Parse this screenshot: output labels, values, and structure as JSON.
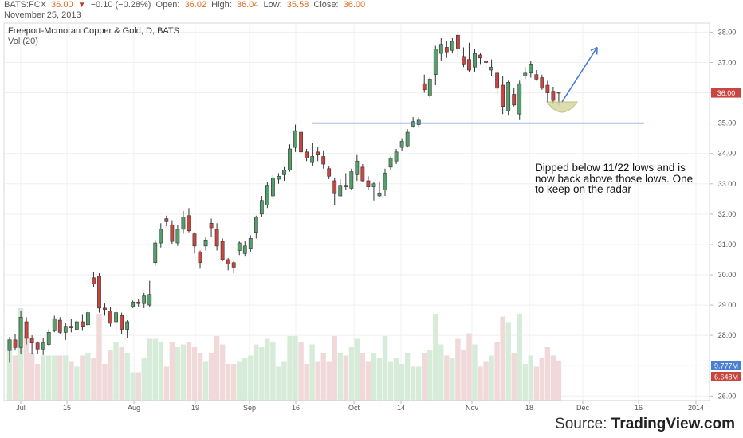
{
  "header": {
    "symbol": "BATS:FCX",
    "last": "36.00",
    "change": "−0.10 (−0.28%)",
    "open_label": "Open:",
    "open": "36.02",
    "high_label": "High:",
    "high": "36.04",
    "low_label": "Low:",
    "low": "35.58",
    "close_label": "Close:",
    "close": "36.00",
    "date": "November 25, 2013"
  },
  "chart_title": "Freeport-Mcmoran Copper & Gold, D, BATS",
  "volume_title": "Vol (20)",
  "annotation": "Dipped below 11/22 lows and is now back above those lows. One to keep on the radar",
  "source_prefix": "Source: ",
  "source_brand": "TradingView.com",
  "colors": {
    "up": "#53a06a",
    "down": "#c9453f",
    "line": "#4a7fd4",
    "price_tag": "#c9453f",
    "vol_up": "#d6ecd9",
    "vol_down": "#f1d9d9",
    "vol_tag1": "#4a7fd4",
    "vol_tag2": "#c9453f"
  },
  "chart_data": {
    "type": "candlestick",
    "y_ticks": [
      "38.00",
      "37.00",
      "36.00",
      "35.00",
      "34.00",
      "33.00",
      "32.00",
      "31.00",
      "30.00",
      "29.00",
      "28.00",
      "27.00",
      "26.00"
    ],
    "ylim": [
      25.85,
      38.3
    ],
    "x_ticks": [
      "Jul",
      "15",
      "Aug",
      "19",
      "Sep",
      "16",
      "Oct",
      "14",
      "Nov",
      "18",
      "Dec",
      "16",
      "2014"
    ],
    "last_price": "36.00",
    "volume_labels": [
      "9.777M",
      "6.648M"
    ],
    "horizontal_line": {
      "price": 35.0,
      "from": "2013-09-19",
      "to": "2013-12-23"
    },
    "projection_arrow": {
      "from_price": 35.7,
      "to_price": 37.5
    },
    "candles": [
      {
        "o": 27.5,
        "h": 27.95,
        "l": 27.1,
        "c": 27.85
      },
      {
        "o": 27.85,
        "h": 28.05,
        "l": 27.5,
        "c": 27.6
      },
      {
        "o": 27.6,
        "h": 28.8,
        "l": 27.4,
        "c": 28.6
      },
      {
        "o": 28.45,
        "h": 28.6,
        "l": 27.7,
        "c": 27.9
      },
      {
        "o": 27.9,
        "h": 28.0,
        "l": 27.4,
        "c": 27.75
      },
      {
        "o": 27.75,
        "h": 27.8,
        "l": 27.4,
        "c": 27.55
      },
      {
        "o": 27.55,
        "h": 27.9,
        "l": 27.35,
        "c": 27.75
      },
      {
        "o": 27.7,
        "h": 28.2,
        "l": 27.65,
        "c": 28.1
      },
      {
        "o": 28.15,
        "h": 28.65,
        "l": 28.1,
        "c": 28.55
      },
      {
        "o": 28.5,
        "h": 28.6,
        "l": 28.05,
        "c": 28.1
      },
      {
        "o": 28.1,
        "h": 28.4,
        "l": 27.85,
        "c": 28.3
      },
      {
        "o": 28.3,
        "h": 28.55,
        "l": 28.1,
        "c": 28.25
      },
      {
        "o": 28.2,
        "h": 28.5,
        "l": 28.15,
        "c": 28.45
      },
      {
        "o": 28.45,
        "h": 28.7,
        "l": 28.15,
        "c": 28.3
      },
      {
        "o": 28.35,
        "h": 28.85,
        "l": 28.25,
        "c": 28.75
      },
      {
        "o": 29.9,
        "h": 30.1,
        "l": 29.6,
        "c": 29.7
      },
      {
        "o": 29.95,
        "h": 30.05,
        "l": 28.75,
        "c": 28.9
      },
      {
        "o": 28.9,
        "h": 29.05,
        "l": 28.65,
        "c": 28.85
      },
      {
        "o": 28.8,
        "h": 28.95,
        "l": 28.3,
        "c": 28.4
      },
      {
        "o": 28.45,
        "h": 28.9,
        "l": 28.1,
        "c": 28.75
      },
      {
        "o": 28.65,
        "h": 28.75,
        "l": 28.05,
        "c": 28.2
      },
      {
        "o": 28.2,
        "h": 28.5,
        "l": 27.9,
        "c": 28.45
      },
      {
        "o": 28.95,
        "h": 29.15,
        "l": 28.9,
        "c": 29.1
      },
      {
        "o": 29.1,
        "h": 29.2,
        "l": 28.95,
        "c": 29.05
      },
      {
        "o": 29.05,
        "h": 29.4,
        "l": 28.9,
        "c": 29.3
      },
      {
        "o": 29.0,
        "h": 29.8,
        "l": 28.95,
        "c": 29.35
      },
      {
        "o": 30.4,
        "h": 31.15,
        "l": 30.3,
        "c": 31.05
      },
      {
        "o": 31.05,
        "h": 31.7,
        "l": 30.9,
        "c": 31.5
      },
      {
        "o": 31.85,
        "h": 31.95,
        "l": 31.6,
        "c": 31.75
      },
      {
        "o": 31.65,
        "h": 31.8,
        "l": 31.0,
        "c": 31.1
      },
      {
        "o": 31.05,
        "h": 31.65,
        "l": 30.95,
        "c": 31.5
      },
      {
        "o": 31.5,
        "h": 32.1,
        "l": 31.35,
        "c": 31.9
      },
      {
        "o": 31.95,
        "h": 32.2,
        "l": 31.4,
        "c": 31.45
      },
      {
        "o": 31.35,
        "h": 31.4,
        "l": 30.7,
        "c": 30.95
      },
      {
        "o": 30.75,
        "h": 30.8,
        "l": 30.2,
        "c": 30.4
      },
      {
        "o": 30.95,
        "h": 31.25,
        "l": 30.8,
        "c": 31.15
      },
      {
        "o": 31.7,
        "h": 31.85,
        "l": 31.25,
        "c": 31.55
      },
      {
        "o": 31.5,
        "h": 31.7,
        "l": 30.8,
        "c": 30.95
      },
      {
        "o": 31.1,
        "h": 31.2,
        "l": 30.45,
        "c": 30.5
      },
      {
        "o": 30.5,
        "h": 30.55,
        "l": 30.15,
        "c": 30.35
      },
      {
        "o": 30.4,
        "h": 30.45,
        "l": 30.05,
        "c": 30.25
      },
      {
        "o": 30.8,
        "h": 31.1,
        "l": 30.65,
        "c": 31.05
      },
      {
        "o": 30.7,
        "h": 31.1,
        "l": 30.6,
        "c": 30.95
      },
      {
        "o": 30.85,
        "h": 31.3,
        "l": 30.75,
        "c": 31.2
      },
      {
        "o": 31.4,
        "h": 31.95,
        "l": 31.2,
        "c": 31.9
      },
      {
        "o": 32.0,
        "h": 32.6,
        "l": 31.9,
        "c": 32.45
      },
      {
        "o": 32.3,
        "h": 33.05,
        "l": 32.2,
        "c": 32.95
      },
      {
        "o": 32.6,
        "h": 33.3,
        "l": 32.5,
        "c": 33.2
      },
      {
        "o": 33.15,
        "h": 33.35,
        "l": 33.0,
        "c": 33.25
      },
      {
        "o": 33.3,
        "h": 33.55,
        "l": 33.1,
        "c": 33.45
      },
      {
        "o": 33.45,
        "h": 34.3,
        "l": 33.4,
        "c": 34.15
      },
      {
        "o": 34.2,
        "h": 34.95,
        "l": 34.05,
        "c": 34.75
      },
      {
        "o": 34.7,
        "h": 34.8,
        "l": 34.0,
        "c": 34.05
      },
      {
        "o": 34.05,
        "h": 34.15,
        "l": 33.75,
        "c": 33.85
      },
      {
        "o": 33.7,
        "h": 34.35,
        "l": 33.6,
        "c": 33.9
      },
      {
        "o": 34.05,
        "h": 34.2,
        "l": 33.75,
        "c": 33.95
      },
      {
        "o": 33.9,
        "h": 34.1,
        "l": 33.5,
        "c": 33.65
      },
      {
        "o": 33.5,
        "h": 33.6,
        "l": 33.15,
        "c": 33.25
      },
      {
        "o": 33.1,
        "h": 33.2,
        "l": 32.3,
        "c": 32.7
      },
      {
        "o": 32.6,
        "h": 33.15,
        "l": 32.55,
        "c": 32.95
      },
      {
        "o": 32.95,
        "h": 33.35,
        "l": 32.8,
        "c": 32.9
      },
      {
        "o": 32.85,
        "h": 33.5,
        "l": 32.8,
        "c": 33.4
      },
      {
        "o": 33.3,
        "h": 33.95,
        "l": 33.1,
        "c": 33.75
      },
      {
        "o": 33.55,
        "h": 33.65,
        "l": 33.05,
        "c": 33.1
      },
      {
        "o": 33.1,
        "h": 33.25,
        "l": 32.8,
        "c": 32.9
      },
      {
        "o": 32.9,
        "h": 33.05,
        "l": 32.45,
        "c": 33.0
      },
      {
        "o": 32.6,
        "h": 33.05,
        "l": 32.55,
        "c": 32.7
      },
      {
        "o": 32.8,
        "h": 33.5,
        "l": 32.6,
        "c": 33.35
      },
      {
        "o": 33.55,
        "h": 33.9,
        "l": 33.45,
        "c": 33.85
      },
      {
        "o": 33.75,
        "h": 34.15,
        "l": 33.65,
        "c": 34.05
      },
      {
        "o": 34.2,
        "h": 34.5,
        "l": 34.1,
        "c": 34.4
      },
      {
        "o": 34.25,
        "h": 34.8,
        "l": 34.2,
        "c": 34.7
      },
      {
        "o": 34.9,
        "h": 35.2,
        "l": 34.85,
        "c": 35.05
      },
      {
        "o": 34.95,
        "h": 35.2,
        "l": 34.85,
        "c": 35.1
      },
      {
        "o": 36.3,
        "h": 36.6,
        "l": 36.0,
        "c": 36.1
      },
      {
        "o": 35.9,
        "h": 36.5,
        "l": 35.85,
        "c": 36.45
      },
      {
        "o": 36.6,
        "h": 37.55,
        "l": 36.25,
        "c": 37.45
      },
      {
        "o": 37.3,
        "h": 37.8,
        "l": 37.05,
        "c": 37.6
      },
      {
        "o": 37.5,
        "h": 37.7,
        "l": 37.15,
        "c": 37.35
      },
      {
        "o": 37.4,
        "h": 37.8,
        "l": 37.3,
        "c": 37.7
      },
      {
        "o": 37.9,
        "h": 38.0,
        "l": 37.15,
        "c": 37.45
      },
      {
        "o": 37.2,
        "h": 37.5,
        "l": 36.85,
        "c": 36.95
      },
      {
        "o": 37.1,
        "h": 37.65,
        "l": 36.7,
        "c": 36.75
      },
      {
        "o": 36.85,
        "h": 37.45,
        "l": 36.7,
        "c": 37.3
      },
      {
        "o": 37.25,
        "h": 37.3,
        "l": 36.95,
        "c": 37.15
      },
      {
        "o": 37.05,
        "h": 37.25,
        "l": 36.8,
        "c": 37.0
      },
      {
        "o": 36.75,
        "h": 37.1,
        "l": 36.55,
        "c": 36.85
      },
      {
        "o": 36.65,
        "h": 36.75,
        "l": 35.95,
        "c": 36.15
      },
      {
        "o": 36.25,
        "h": 36.55,
        "l": 35.3,
        "c": 35.55
      },
      {
        "o": 35.4,
        "h": 36.4,
        "l": 35.25,
        "c": 36.35
      },
      {
        "o": 35.95,
        "h": 36.15,
        "l": 35.55,
        "c": 35.6
      },
      {
        "o": 35.3,
        "h": 36.4,
        "l": 35.1,
        "c": 36.3
      },
      {
        "o": 36.55,
        "h": 36.85,
        "l": 36.45,
        "c": 36.65
      },
      {
        "o": 36.65,
        "h": 37.05,
        "l": 36.5,
        "c": 36.95
      },
      {
        "o": 36.6,
        "h": 36.75,
        "l": 36.4,
        "c": 36.45
      },
      {
        "o": 36.5,
        "h": 36.6,
        "l": 36.1,
        "c": 36.15
      },
      {
        "o": 36.25,
        "h": 36.4,
        "l": 35.7,
        "c": 36.0
      },
      {
        "o": 36.05,
        "h": 36.2,
        "l": 35.65,
        "c": 35.75
      },
      {
        "o": 36.02,
        "h": 36.04,
        "l": 35.58,
        "c": 36.0
      }
    ]
  }
}
